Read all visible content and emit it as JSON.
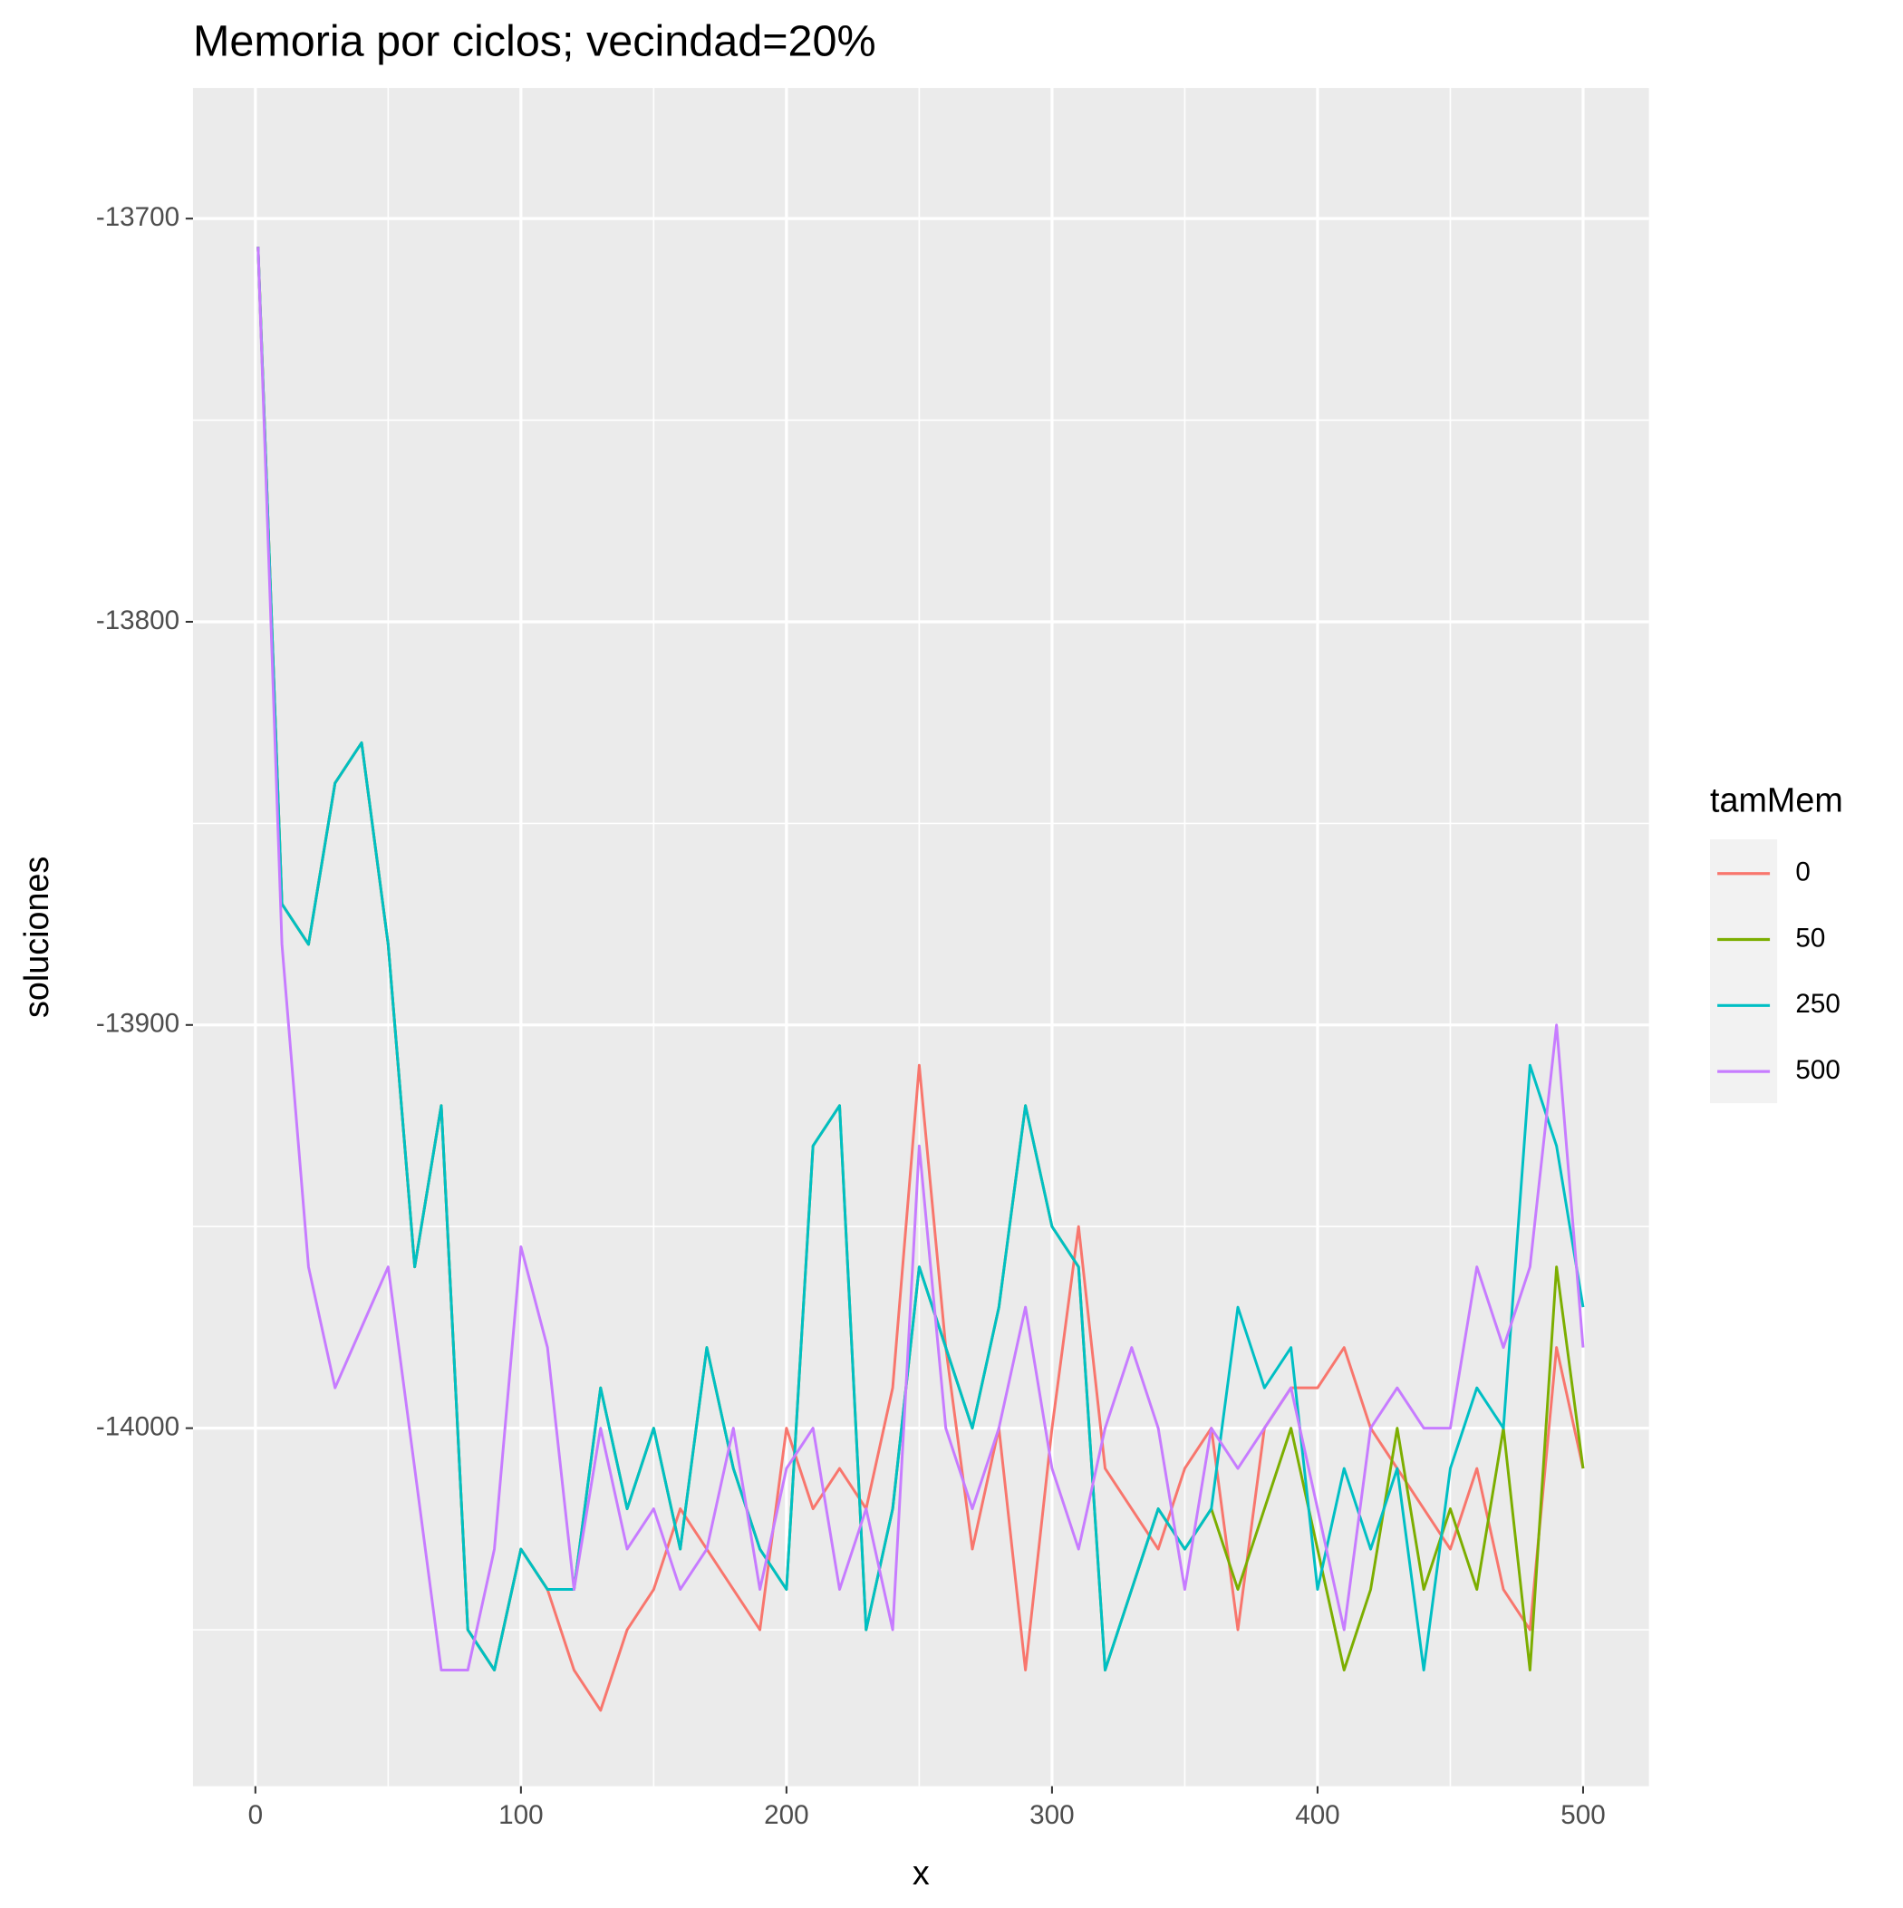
{
  "chart_data": {
    "type": "line",
    "title": "Memoria por ciclos; vecindad=20%",
    "x_label": "x",
    "y_label": "soluciones",
    "legend_title": "tamMem",
    "x": [
      1,
      10,
      20,
      30,
      40,
      50,
      60,
      70,
      80,
      90,
      100,
      110,
      120,
      130,
      140,
      150,
      160,
      170,
      180,
      190,
      200,
      210,
      220,
      230,
      240,
      250,
      260,
      270,
      280,
      290,
      300,
      310,
      320,
      330,
      340,
      350,
      360,
      370,
      380,
      390,
      400,
      410,
      420,
      430,
      440,
      450,
      460,
      470,
      480,
      490,
      500
    ],
    "series": [
      {
        "name": "0",
        "color": "#F8766D",
        "values": [
          -13707,
          -13870,
          -13880,
          -13840,
          -13830,
          -13880,
          -13960,
          -13920,
          -14050,
          -14060,
          -14030,
          -14040,
          -14060,
          -14070,
          -14050,
          -14040,
          -14020,
          -14030,
          -14040,
          -14050,
          -14000,
          -14020,
          -14010,
          -14020,
          -13990,
          -13910,
          -13980,
          -14030,
          -14000,
          -14060,
          -14000,
          -13950,
          -14010,
          -14020,
          -14030,
          -14010,
          -14000,
          -14050,
          -14000,
          -13990,
          -13990,
          -13980,
          -14000,
          -14010,
          -14020,
          -14030,
          -14010,
          -14040,
          -14050,
          -13980,
          -14010
        ]
      },
      {
        "name": "50",
        "color": "#7CAE00",
        "values": [
          -13707,
          -13870,
          -13880,
          -13840,
          -13830,
          -13880,
          -13960,
          -13920,
          -14050,
          -14060,
          -14030,
          -14040,
          -14040,
          -13990,
          -14020,
          -14000,
          -14030,
          -13980,
          -14010,
          -14030,
          -14040,
          -13930,
          -13920,
          -14050,
          -14020,
          -13960,
          -13980,
          -14000,
          -13970,
          -13920,
          -13950,
          -13960,
          -14060,
          -14040,
          -14020,
          -14030,
          -14020,
          -14040,
          -14020,
          -14000,
          -14030,
          -14060,
          -14040,
          -14000,
          -14040,
          -14020,
          -14040,
          -14000,
          -14060,
          -13960,
          -14010
        ]
      },
      {
        "name": "250",
        "color": "#00BFC4",
        "values": [
          -13707,
          -13870,
          -13880,
          -13840,
          -13830,
          -13880,
          -13960,
          -13920,
          -14050,
          -14060,
          -14030,
          -14040,
          -14040,
          -13990,
          -14020,
          -14000,
          -14030,
          -13980,
          -14010,
          -14030,
          -14040,
          -13930,
          -13920,
          -14050,
          -14020,
          -13960,
          -13980,
          -14000,
          -13970,
          -13920,
          -13950,
          -13960,
          -14060,
          -14040,
          -14020,
          -14030,
          -14020,
          -13970,
          -13990,
          -13980,
          -14040,
          -14010,
          -14030,
          -14010,
          -14060,
          -14010,
          -13990,
          -14000,
          -13910,
          -13930,
          -13970
        ]
      },
      {
        "name": "500",
        "color": "#C77CFF",
        "values": [
          -13707,
          -13880,
          -13960,
          -13990,
          -13975,
          -13960,
          -14010,
          -14060,
          -14060,
          -14030,
          -13955,
          -13980,
          -14040,
          -14000,
          -14030,
          -14020,
          -14040,
          -14030,
          -14000,
          -14040,
          -14010,
          -14000,
          -14040,
          -14020,
          -14050,
          -13930,
          -14000,
          -14020,
          -14000,
          -13970,
          -14010,
          -14030,
          -14000,
          -13980,
          -14000,
          -14040,
          -14000,
          -14010,
          -14000,
          -13990,
          -14020,
          -14050,
          -14000,
          -13990,
          -14000,
          -14000,
          -13960,
          -13980,
          -13960,
          -13900,
          -13980
        ]
      }
    ],
    "xlim": [
      -23.5,
      524.8
    ],
    "ylim": [
      -14088.8,
      -13667.6
    ],
    "xticks": [
      0,
      100,
      200,
      300,
      400,
      500
    ],
    "yticks": [
      -13700,
      -13800,
      -13900,
      -14000
    ],
    "grid": true,
    "minor_grid": true,
    "legend_position": "right"
  }
}
